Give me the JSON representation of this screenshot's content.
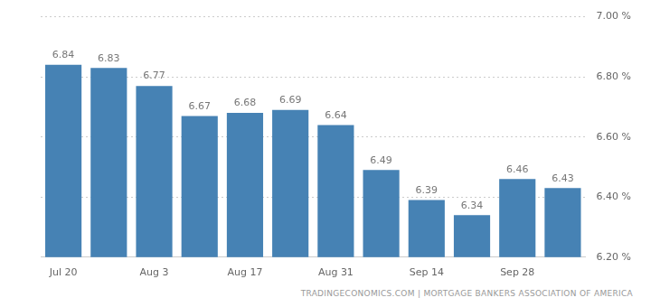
{
  "chart_data": {
    "type": "bar",
    "source": "TRADINGECONOMICS.COM | MORTGAGE BANKERS ASSOCIATION OF AMERICA",
    "categories": [
      "Jul 20",
      null,
      "Aug 3",
      null,
      "Aug 17",
      null,
      "Aug 31",
      null,
      "Sep 14",
      null,
      "Sep 28",
      null
    ],
    "values": [
      6.84,
      6.83,
      6.77,
      6.67,
      6.68,
      6.69,
      6.64,
      6.49,
      6.39,
      6.34,
      6.46,
      6.43
    ],
    "color": "#4682b4",
    "ylim": [
      6.2,
      7.0
    ],
    "yticks": [
      {
        "value": 6.2,
        "label": "6.20 %"
      },
      {
        "value": 6.4,
        "label": "6.40 %"
      },
      {
        "value": 6.6,
        "label": "6.60 %"
      },
      {
        "value": 6.8,
        "label": "6.80 %"
      },
      {
        "value": 7.0,
        "label": "7.00 %"
      }
    ],
    "grid": true,
    "data_labels": true
  }
}
